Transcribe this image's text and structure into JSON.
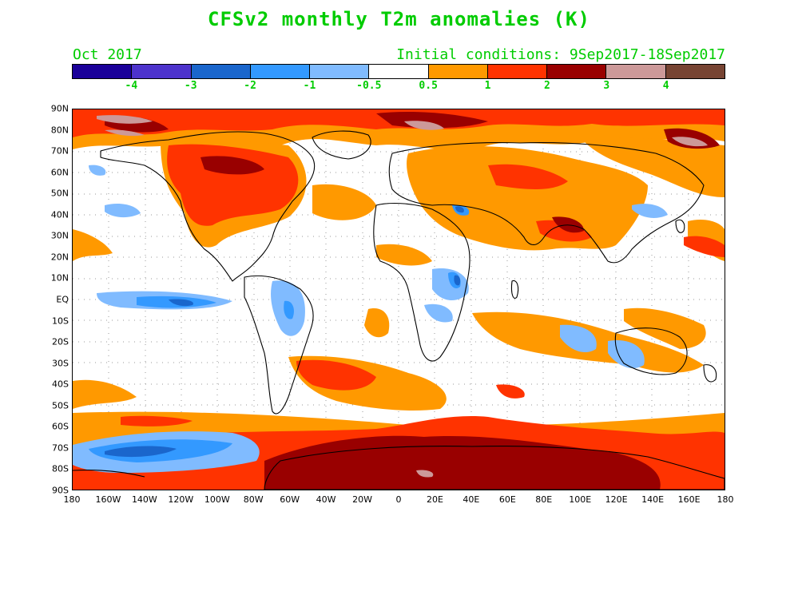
{
  "header": {
    "title": "CFSv2 monthly T2m anomalies (K)",
    "target_month": "Oct 2017",
    "initial_conditions": "Initial conditions: 9Sep2017-18Sep2017"
  },
  "colorbar": {
    "colors": [
      "#1a0099",
      "#4d33cc",
      "#1a66cc",
      "#3399ff",
      "#80bbff",
      "#ffffff",
      "#ff9900",
      "#ff3300",
      "#990000",
      "#cc9999",
      "#774433"
    ],
    "labels": [
      "-4",
      "-3",
      "-2",
      "-1",
      "-0.5",
      "0.5",
      "1",
      "2",
      "3",
      "4"
    ]
  },
  "axes": {
    "lat_labels": [
      "90N",
      "80N",
      "70N",
      "60N",
      "50N",
      "40N",
      "30N",
      "20N",
      "10N",
      "EQ",
      "10S",
      "20S",
      "30S",
      "40S",
      "50S",
      "60S",
      "70S",
      "80S",
      "90S"
    ],
    "lon_labels": [
      "180",
      "160W",
      "140W",
      "120W",
      "100W",
      "80W",
      "60W",
      "40W",
      "20W",
      "0",
      "20E",
      "40E",
      "60E",
      "80E",
      "100E",
      "120E",
      "140E",
      "160E",
      "180"
    ]
  },
  "legend_colors": {
    "cold_strong": "#1a66cc",
    "cold": "#3399ff",
    "cold_weak": "#80bbff",
    "warm_weak": "#ff9900",
    "warm": "#ff3300",
    "warm_strong": "#990000",
    "warm_extreme": "#cc9999"
  }
}
